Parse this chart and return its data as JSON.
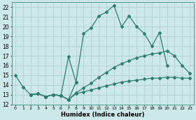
{
  "xlabel": "Humidex (Indice chaleur)",
  "xlim": [
    -0.5,
    23.5
  ],
  "ylim": [
    12,
    22.5
  ],
  "xticks": [
    0,
    1,
    2,
    3,
    4,
    5,
    6,
    7,
    8,
    9,
    10,
    11,
    12,
    13,
    14,
    15,
    16,
    17,
    18,
    19,
    20,
    21,
    22,
    23
  ],
  "yticks": [
    12,
    13,
    14,
    15,
    16,
    17,
    18,
    19,
    20,
    21,
    22
  ],
  "bg_color": "#cce8e8",
  "grid_color": "#b0d0d0",
  "line_color": "#2e7d6e",
  "line1_x": [
    0,
    1,
    2,
    3,
    4,
    5,
    6,
    7,
    8,
    9,
    10,
    11,
    12,
    13,
    14,
    15,
    16,
    17,
    18,
    19,
    20
  ],
  "line1_y": [
    15.0,
    13.8,
    13.0,
    13.1,
    12.8,
    13.0,
    12.9,
    12.5,
    14.3,
    19.3,
    19.9,
    21.1,
    21.5,
    22.2,
    20.0,
    21.1,
    20.0,
    19.3,
    18.0,
    19.4,
    16.0
  ],
  "line2_x": [
    2,
    3,
    4,
    5,
    6,
    7,
    8
  ],
  "line2_y": [
    13.0,
    13.1,
    12.8,
    13.0,
    12.9,
    16.9,
    14.3
  ],
  "line3_x": [
    2,
    3,
    4,
    5,
    6,
    7,
    8,
    9,
    10,
    11,
    12,
    13,
    14,
    15,
    16,
    17,
    18,
    19,
    20,
    21,
    22,
    23
  ],
  "line3_y": [
    13.0,
    13.1,
    12.8,
    13.0,
    12.9,
    12.5,
    13.1,
    13.3,
    13.5,
    13.7,
    13.9,
    14.1,
    14.3,
    14.4,
    14.5,
    14.6,
    14.7,
    14.7,
    14.8,
    14.8,
    14.7,
    14.7
  ],
  "line4_x": [
    2,
    3,
    4,
    5,
    6,
    7,
    8,
    9,
    10,
    11,
    12,
    13,
    14,
    15,
    16,
    17,
    18,
    19,
    20,
    21,
    22,
    23
  ],
  "line4_y": [
    13.0,
    13.1,
    12.8,
    13.0,
    12.9,
    12.5,
    13.2,
    13.7,
    14.2,
    14.8,
    15.3,
    15.8,
    16.2,
    16.5,
    16.8,
    17.0,
    17.2,
    17.3,
    17.5,
    17.0,
    16.0,
    15.2
  ]
}
